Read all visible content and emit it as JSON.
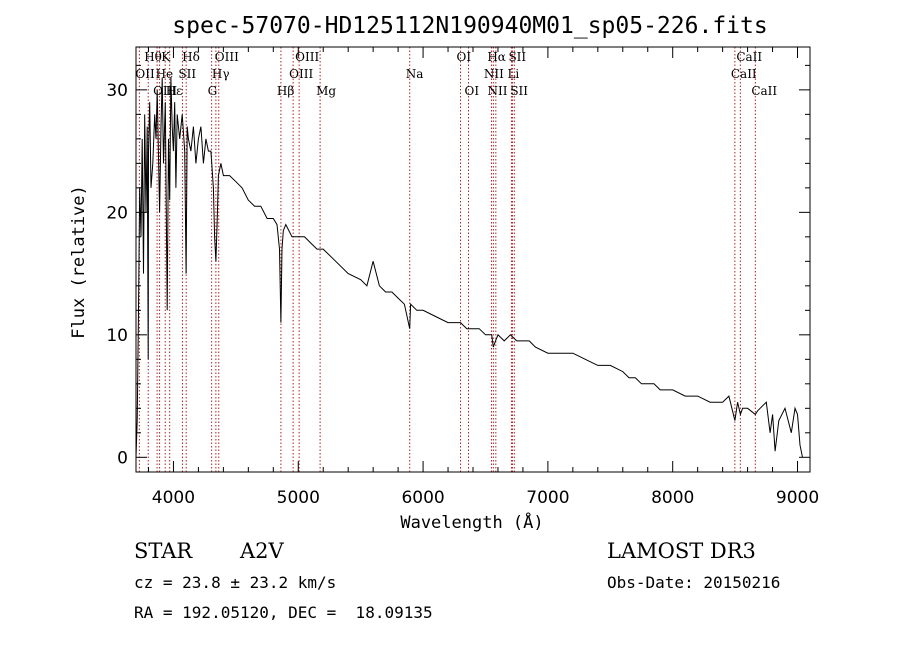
{
  "chart_data": {
    "type": "line",
    "title": "spec-57070-HD125112N190940M01_sp05-226.fits",
    "xlabel": "Wavelength (Å)",
    "ylabel": "Flux (relative)",
    "xlim": [
      3700,
      9100
    ],
    "ylim": [
      -1.2,
      33.5
    ],
    "xticks": [
      4000,
      5000,
      6000,
      7000,
      8000,
      9000
    ],
    "yticks": [
      0,
      10,
      20,
      30
    ],
    "grid": false,
    "line_color": "#b22222",
    "series": [
      {
        "name": "flux",
        "x": [
          3700,
          3710,
          3720,
          3730,
          3740,
          3750,
          3760,
          3770,
          3780,
          3790,
          3798,
          3800,
          3810,
          3820,
          3835,
          3850,
          3860,
          3870,
          3889,
          3900,
          3910,
          3920,
          3935,
          3950,
          3960,
          3970,
          3980,
          3990,
          4000,
          4010,
          4020,
          4030,
          4050,
          4070,
          4090,
          4101,
          4110,
          4120,
          4140,
          4160,
          4180,
          4200,
          4220,
          4240,
          4260,
          4280,
          4300,
          4320,
          4330,
          4340,
          4350,
          4360,
          4380,
          4400,
          4450,
          4500,
          4550,
          4600,
          4650,
          4700,
          4750,
          4800,
          4830,
          4850,
          4861,
          4870,
          4880,
          4900,
          4950,
          5000,
          5050,
          5100,
          5150,
          5200,
          5300,
          5400,
          5500,
          5550,
          5600,
          5650,
          5700,
          5750,
          5800,
          5850,
          5893,
          5900,
          5950,
          6000,
          6100,
          6200,
          6300,
          6350,
          6400,
          6450,
          6500,
          6550,
          6563,
          6580,
          6600,
          6650,
          6700,
          6750,
          6800,
          6850,
          6900,
          7000,
          7100,
          7200,
          7300,
          7400,
          7500,
          7600,
          7650,
          7700,
          7750,
          7800,
          7850,
          7900,
          8000,
          8100,
          8200,
          8300,
          8400,
          8450,
          8498,
          8520,
          8542,
          8560,
          8600,
          8662,
          8680,
          8700,
          8750,
          8780,
          8800,
          8820,
          8850,
          8900,
          8950,
          8980,
          9000,
          9020,
          9040
        ],
        "y": [
          0,
          3,
          12,
          22,
          18,
          26,
          15,
          28,
          20,
          27,
          8,
          25,
          29,
          22,
          24,
          28,
          26,
          30,
          20,
          27,
          31,
          24,
          29,
          12,
          26,
          21,
          31,
          27,
          25,
          29,
          22,
          28,
          26,
          28,
          25,
          15,
          27,
          26,
          25,
          27,
          24,
          26,
          27,
          24,
          26,
          25,
          25,
          22,
          18,
          16,
          19,
          23,
          24,
          23,
          23,
          22.5,
          22,
          21,
          20.5,
          20.5,
          19.5,
          19.5,
          19,
          17,
          11,
          17,
          18.5,
          19,
          18,
          18,
          18,
          17.5,
          17,
          17,
          16,
          15,
          14.5,
          14,
          16,
          14,
          13.5,
          13.5,
          13,
          12.5,
          10.5,
          12.5,
          12,
          12,
          11.5,
          11,
          11,
          10.5,
          10.5,
          10.5,
          10,
          10,
          9,
          9.5,
          10,
          9.5,
          10,
          9.5,
          9.5,
          9.5,
          9,
          8.5,
          8.5,
          8.5,
          8,
          7.5,
          7.5,
          7,
          6.5,
          6.5,
          6,
          6,
          6,
          5.5,
          5.5,
          5,
          5,
          4.5,
          4.5,
          5,
          3,
          4.5,
          3.5,
          4,
          4,
          3.5,
          3.8,
          4,
          4.5,
          2,
          3.5,
          0.5,
          3,
          4,
          2,
          4,
          3.5,
          1,
          0
        ]
      }
    ],
    "lines": [
      {
        "name": "Hθ",
        "wavelength": 3798,
        "row": 1,
        "dx": 0
      },
      {
        "name": "K",
        "wavelength": 3934,
        "row": 1,
        "dx": 0
      },
      {
        "name": "Hδ",
        "wavelength": 4102,
        "row": 1,
        "dx": 0
      },
      {
        "name": "OIII",
        "wavelength": 4363,
        "row": 1,
        "dx": 0
      },
      {
        "name": "OIII",
        "wavelength": 5007,
        "row": 1,
        "dx": 0
      },
      {
        "name": "OI",
        "wavelength": 6300,
        "row": 1,
        "dx": 0
      },
      {
        "name": "Hα",
        "wavelength": 6563,
        "row": 1,
        "dx": -2
      },
      {
        "name": "SII",
        "wavelength": 6716,
        "row": 1,
        "dx": 0
      },
      {
        "name": "CaII",
        "wavelength": 8542,
        "row": 1,
        "dx": 0
      },
      {
        "name": "OII",
        "wavelength": 3727,
        "row": 2,
        "dx": 0
      },
      {
        "name": "He",
        "wavelength": 3889,
        "row": 2,
        "dx": 0
      },
      {
        "name": "SII",
        "wavelength": 4072,
        "row": 2,
        "dx": 0
      },
      {
        "name": "Hγ",
        "wavelength": 4340,
        "row": 2,
        "dx": 0
      },
      {
        "name": "OIII",
        "wavelength": 4959,
        "row": 2,
        "dx": 0
      },
      {
        "name": "Na",
        "wavelength": 5893,
        "row": 2,
        "dx": 0
      },
      {
        "name": "NII",
        "wavelength": 6583,
        "row": 2,
        "dx": -8
      },
      {
        "name": "Li",
        "wavelength": 6708,
        "row": 2,
        "dx": 0
      },
      {
        "name": "CaII",
        "wavelength": 8498,
        "row": 2,
        "dx": 0
      },
      {
        "name": "OIII",
        "wavelength": 3869,
        "row": 3,
        "dx": 0
      },
      {
        "name": "Hε",
        "wavelength": 3970,
        "row": 3,
        "dx": 0
      },
      {
        "name": "G",
        "wavelength": 4306,
        "row": 3,
        "dx": 0
      },
      {
        "name": "Hβ",
        "wavelength": 4861,
        "row": 3,
        "dx": 0
      },
      {
        "name": "Mg",
        "wavelength": 5175,
        "row": 3,
        "dx": 0
      },
      {
        "name": "OI",
        "wavelength": 6364,
        "row": 3,
        "dx": 0
      },
      {
        "name": "NII",
        "wavelength": 6548,
        "row": 3,
        "dx": 0
      },
      {
        "name": "SII",
        "wavelength": 6731,
        "row": 3,
        "dx": 0
      },
      {
        "name": "CaII",
        "wavelength": 8662,
        "row": 3,
        "dx": 0
      }
    ]
  },
  "info": {
    "object_class": "STAR",
    "subclass": "A2V",
    "survey": "LAMOST DR3",
    "cz": "cz = 23.8 ± 23.2 km/s",
    "obs_date": "Obs-Date: 20150216",
    "coords": "RA = 192.05120, DEC =  18.09135"
  }
}
